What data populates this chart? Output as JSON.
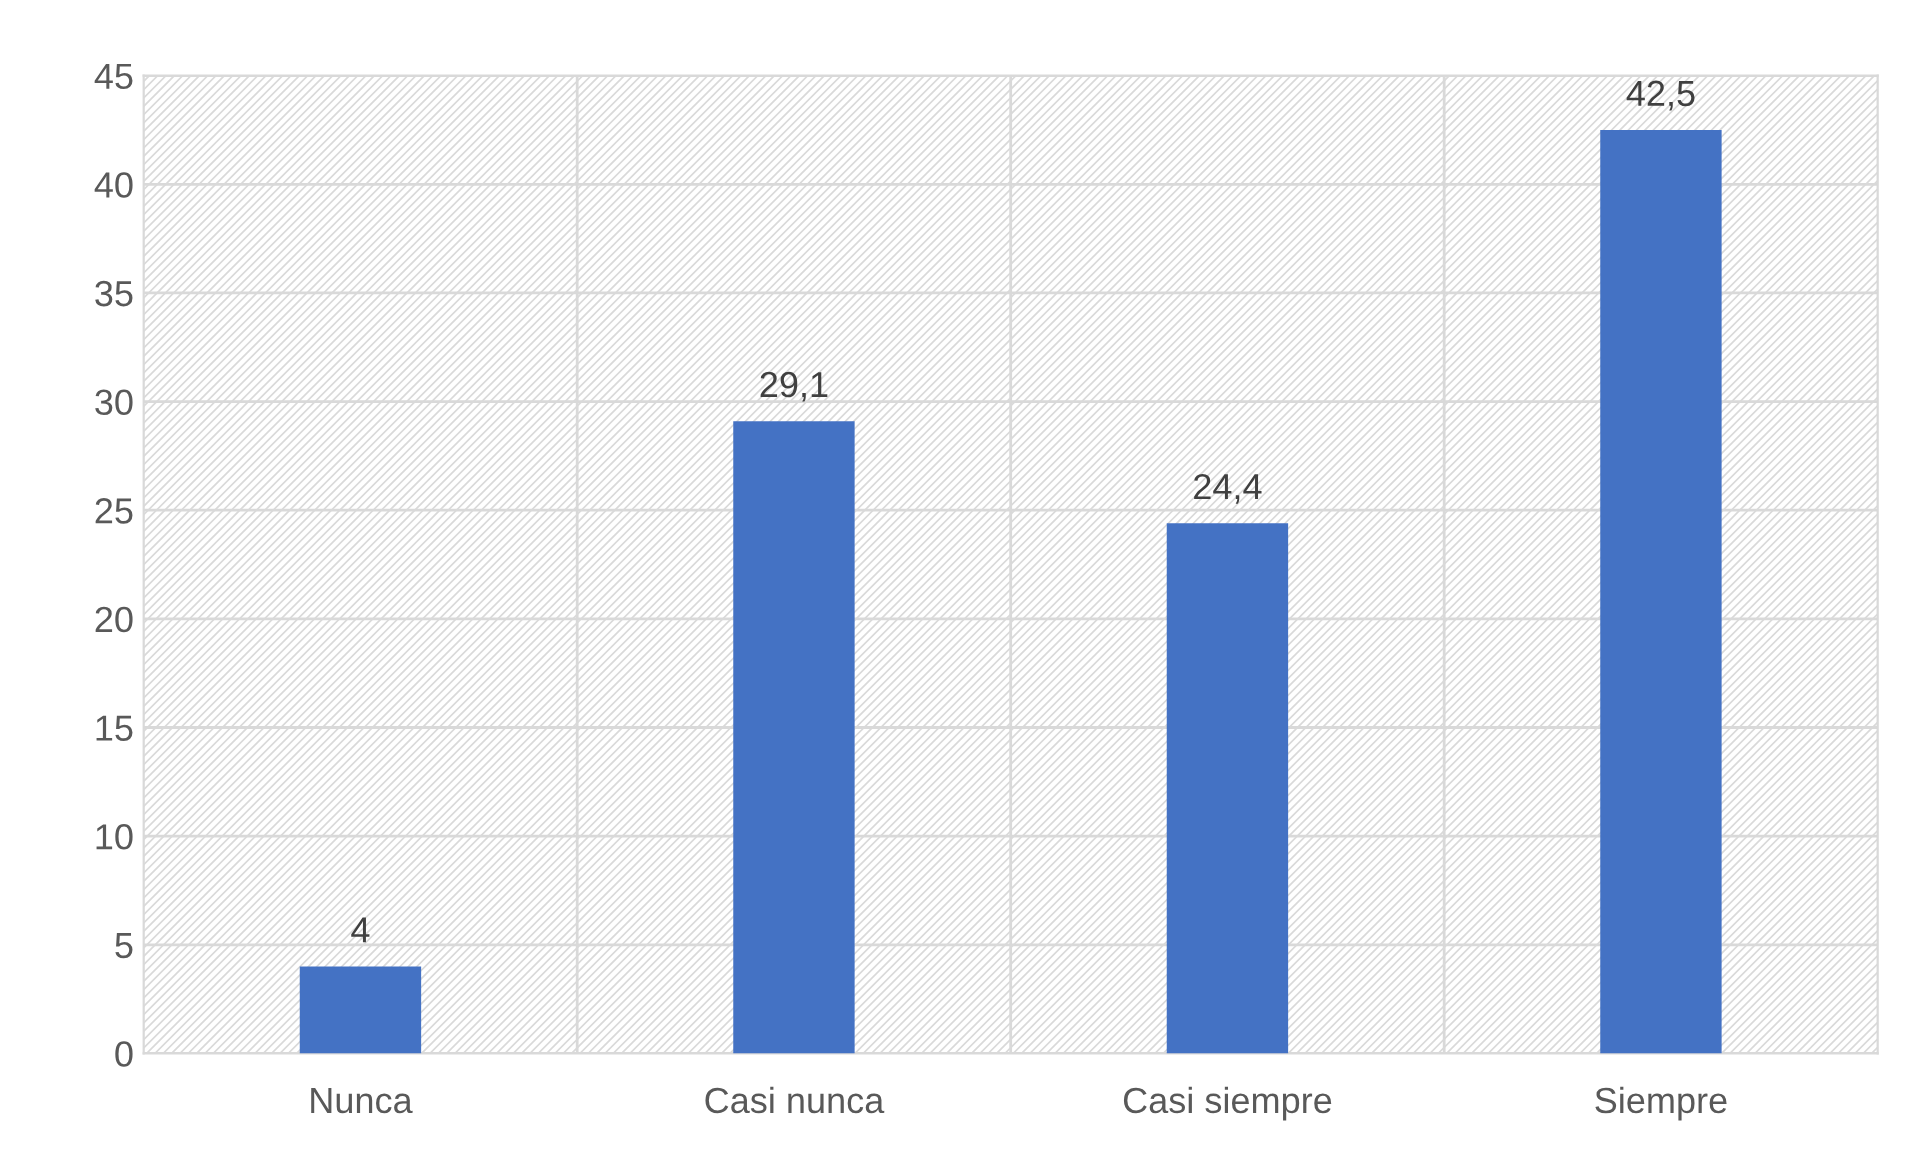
{
  "chart_data": {
    "type": "bar",
    "categories": [
      "Nunca",
      "Casi nunca",
      "Casi siempre",
      "Siempre"
    ],
    "values": [
      4,
      29.1,
      24.4,
      42.5
    ],
    "value_labels": [
      "4",
      "29,1",
      "24,4",
      "42,5"
    ],
    "color": "#4472c4",
    "ylim": [
      0,
      45
    ],
    "yticks": [
      0,
      5,
      10,
      15,
      20,
      25,
      30,
      35,
      40,
      45
    ],
    "grid": true,
    "legend": false
  }
}
